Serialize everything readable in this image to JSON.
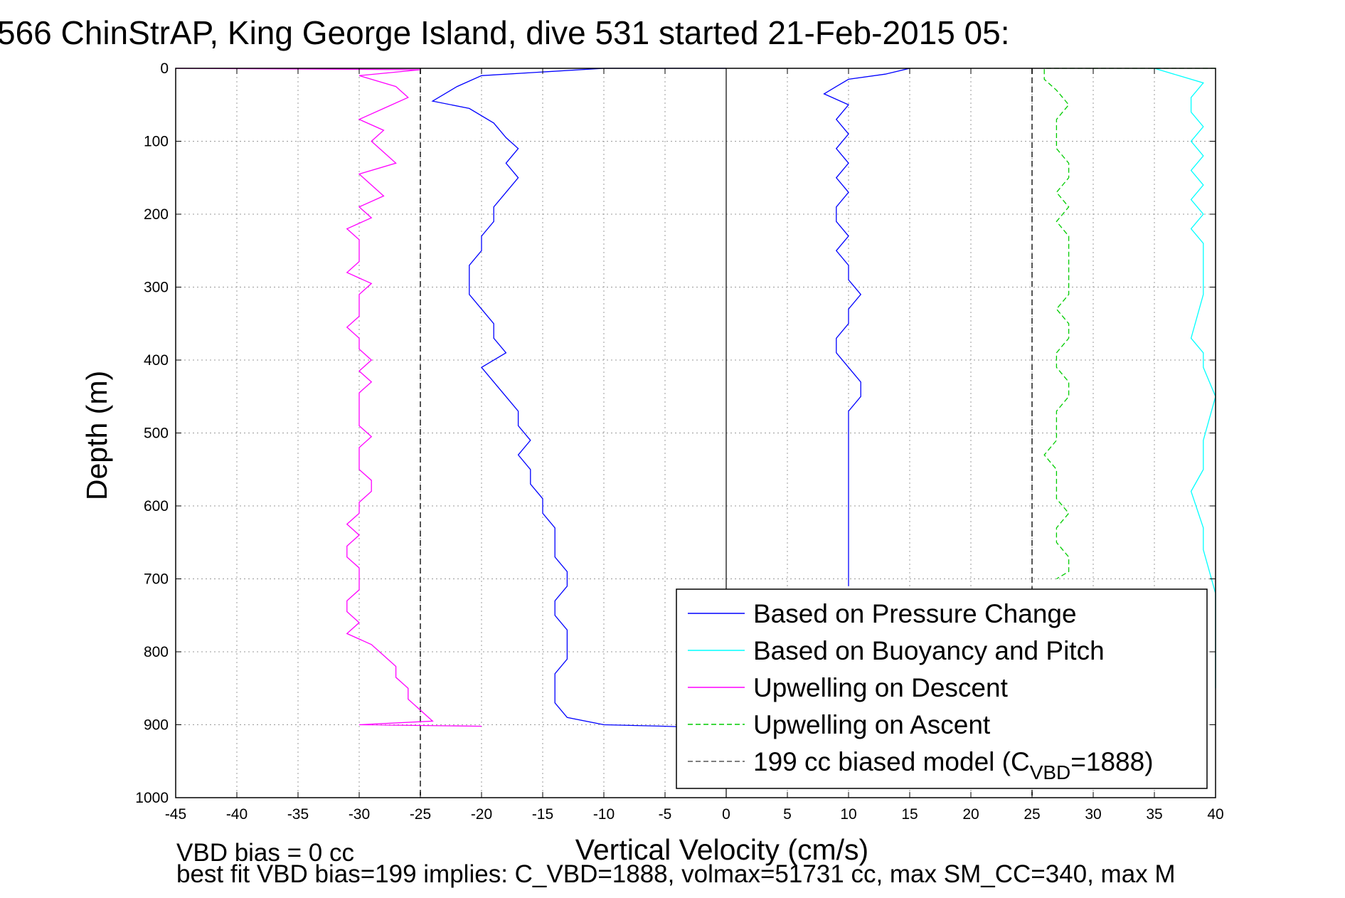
{
  "chart_data": {
    "type": "line",
    "title": "566 ChinStrAP, King George Island, dive 531 started 21-Feb-2015 05:",
    "xlabel": "Vertical Velocity (cm/s)",
    "ylabel": "Depth (m)",
    "xlim": [
      -45,
      40
    ],
    "ylim": [
      0,
      1000
    ],
    "y_reversed": true,
    "grid": true,
    "legend_position": "bottom-right",
    "x_ticks": [
      "-45",
      "-40",
      "-35",
      "-30",
      "-25",
      "-20",
      "-15",
      "-10",
      "-5",
      "0",
      "5",
      "10",
      "15",
      "20",
      "25",
      "30",
      "35",
      "40"
    ],
    "y_ticks": [
      "0",
      "100",
      "200",
      "300",
      "400",
      "500",
      "600",
      "700",
      "800",
      "900",
      "1000"
    ],
    "reference_lines": [
      {
        "name": "zero-line",
        "axis": "x",
        "value": 0,
        "color": "#000000",
        "style": "solid"
      },
      {
        "name": "bias-model-descent",
        "axis": "x",
        "value": -25,
        "color": "#555555",
        "style": "dashed"
      },
      {
        "name": "bias-model-ascent",
        "axis": "x",
        "value": 25,
        "color": "#555555",
        "style": "dashed"
      }
    ],
    "series": [
      {
        "name": "Based on Pressure Change",
        "color": "#0000ff",
        "style": "solid",
        "points": [
          [
            0,
            0
          ],
          [
            -10,
            0
          ],
          [
            -20,
            10
          ],
          [
            -22,
            25
          ],
          [
            -24,
            45
          ],
          [
            -21,
            55
          ],
          [
            -19,
            75
          ],
          [
            -18,
            95
          ],
          [
            -17,
            110
          ],
          [
            -18,
            130
          ],
          [
            -17,
            150
          ],
          [
            -18,
            170
          ],
          [
            -19,
            190
          ],
          [
            -19,
            210
          ],
          [
            -20,
            230
          ],
          [
            -20,
            250
          ],
          [
            -21,
            270
          ],
          [
            -21,
            290
          ],
          [
            -21,
            310
          ],
          [
            -20,
            330
          ],
          [
            -19,
            350
          ],
          [
            -19,
            370
          ],
          [
            -18,
            390
          ],
          [
            -20,
            410
          ],
          [
            -19,
            430
          ],
          [
            -18,
            450
          ],
          [
            -17,
            470
          ],
          [
            -17,
            490
          ],
          [
            -16,
            510
          ],
          [
            -17,
            530
          ],
          [
            -16,
            550
          ],
          [
            -16,
            570
          ],
          [
            -15,
            590
          ],
          [
            -15,
            610
          ],
          [
            -14,
            630
          ],
          [
            -14,
            650
          ],
          [
            -14,
            670
          ],
          [
            -13,
            690
          ],
          [
            -13,
            710
          ],
          [
            -14,
            730
          ],
          [
            -14,
            750
          ],
          [
            -13,
            770
          ],
          [
            -13,
            790
          ],
          [
            -13,
            810
          ],
          [
            -14,
            830
          ],
          [
            -14,
            850
          ],
          [
            -14,
            870
          ],
          [
            -13,
            890
          ],
          [
            -10,
            900
          ],
          [
            -5,
            902
          ],
          [
            0,
            905
          ]
        ]
      },
      {
        "name": "Based on Pressure Change (ascent)",
        "color": "#0000ff",
        "style": "solid",
        "points": [
          [
            15,
            0
          ],
          [
            13,
            8
          ],
          [
            10,
            15
          ],
          [
            9,
            25
          ],
          [
            8,
            35
          ],
          [
            10,
            50
          ],
          [
            9,
            70
          ],
          [
            10,
            90
          ],
          [
            9,
            110
          ],
          [
            10,
            130
          ],
          [
            9,
            150
          ],
          [
            10,
            170
          ],
          [
            9,
            190
          ],
          [
            9,
            210
          ],
          [
            10,
            230
          ],
          [
            9,
            250
          ],
          [
            10,
            270
          ],
          [
            10,
            290
          ],
          [
            11,
            310
          ],
          [
            10,
            330
          ],
          [
            10,
            350
          ],
          [
            9,
            370
          ],
          [
            9,
            390
          ],
          [
            10,
            410
          ],
          [
            11,
            430
          ],
          [
            11,
            450
          ],
          [
            10,
            470
          ],
          [
            10,
            490
          ],
          [
            10,
            510
          ],
          [
            10,
            530
          ],
          [
            10,
            550
          ],
          [
            10,
            570
          ],
          [
            10,
            590
          ],
          [
            10,
            610
          ],
          [
            10,
            630
          ],
          [
            10,
            650
          ],
          [
            10,
            670
          ],
          [
            10,
            690
          ],
          [
            10,
            710
          ]
        ]
      },
      {
        "name": "Based on Buoyancy and Pitch",
        "color": "#00ffff",
        "style": "solid",
        "points": [
          [
            35,
            0
          ],
          [
            37,
            10
          ],
          [
            39,
            20
          ],
          [
            38,
            40
          ],
          [
            38,
            60
          ],
          [
            39,
            80
          ],
          [
            38,
            100
          ],
          [
            39,
            120
          ],
          [
            38,
            140
          ],
          [
            39,
            160
          ],
          [
            38,
            180
          ],
          [
            39,
            200
          ],
          [
            38,
            220
          ],
          [
            39,
            240
          ],
          [
            39,
            300
          ],
          [
            39,
            310
          ],
          [
            38,
            370
          ],
          [
            39,
            390
          ],
          [
            39,
            410
          ],
          [
            40,
            450
          ],
          [
            39,
            510
          ],
          [
            39,
            530
          ],
          [
            39,
            550
          ],
          [
            38,
            580
          ],
          [
            39,
            630
          ],
          [
            39,
            660
          ],
          [
            40,
            720
          ],
          [
            40,
            780
          ],
          [
            40,
            790
          ],
          [
            40,
            850
          ]
        ]
      },
      {
        "name": "Upwelling on Descent",
        "color": "#ff00ff",
        "style": "solid",
        "points": [
          [
            -45,
            0
          ],
          [
            -25,
            2
          ],
          [
            -30,
            10
          ],
          [
            -27,
            25
          ],
          [
            -26,
            40
          ],
          [
            -28,
            55
          ],
          [
            -30,
            70
          ],
          [
            -28,
            85
          ],
          [
            -29,
            100
          ],
          [
            -28,
            115
          ],
          [
            -27,
            130
          ],
          [
            -30,
            145
          ],
          [
            -29,
            160
          ],
          [
            -28,
            175
          ],
          [
            -30,
            190
          ],
          [
            -29,
            205
          ],
          [
            -31,
            220
          ],
          [
            -30,
            235
          ],
          [
            -30,
            250
          ],
          [
            -30,
            265
          ],
          [
            -31,
            280
          ],
          [
            -29,
            295
          ],
          [
            -30,
            310
          ],
          [
            -30,
            325
          ],
          [
            -30,
            340
          ],
          [
            -31,
            355
          ],
          [
            -30,
            370
          ],
          [
            -30,
            385
          ],
          [
            -29,
            400
          ],
          [
            -30,
            415
          ],
          [
            -29,
            430
          ],
          [
            -30,
            445
          ],
          [
            -30,
            460
          ],
          [
            -30,
            475
          ],
          [
            -30,
            490
          ],
          [
            -29,
            505
          ],
          [
            -30,
            520
          ],
          [
            -30,
            535
          ],
          [
            -30,
            550
          ],
          [
            -29,
            565
          ],
          [
            -29,
            580
          ],
          [
            -30,
            595
          ],
          [
            -30,
            610
          ],
          [
            -31,
            625
          ],
          [
            -30,
            640
          ],
          [
            -31,
            655
          ],
          [
            -31,
            670
          ],
          [
            -30,
            685
          ],
          [
            -30,
            700
          ],
          [
            -30,
            715
          ],
          [
            -31,
            730
          ],
          [
            -31,
            745
          ],
          [
            -30,
            760
          ],
          [
            -31,
            775
          ],
          [
            -29,
            790
          ],
          [
            -28,
            805
          ],
          [
            -27,
            820
          ],
          [
            -27,
            835
          ],
          [
            -26,
            850
          ],
          [
            -26,
            865
          ],
          [
            -25,
            880
          ],
          [
            -24,
            895
          ],
          [
            -30,
            900
          ],
          [
            -20,
            902
          ]
        ]
      },
      {
        "name": "Upwelling on Ascent",
        "color": "#00cc00",
        "style": "dashed",
        "points": [
          [
            40,
            0
          ],
          [
            26,
            0
          ],
          [
            26,
            15
          ],
          [
            27,
            30
          ],
          [
            28,
            50
          ],
          [
            27,
            70
          ],
          [
            27,
            90
          ],
          [
            27,
            110
          ],
          [
            28,
            130
          ],
          [
            28,
            150
          ],
          [
            27,
            170
          ],
          [
            28,
            190
          ],
          [
            27,
            210
          ],
          [
            28,
            230
          ],
          [
            28,
            250
          ],
          [
            28,
            270
          ],
          [
            28,
            290
          ],
          [
            28,
            310
          ],
          [
            27,
            330
          ],
          [
            28,
            350
          ],
          [
            28,
            370
          ],
          [
            27,
            390
          ],
          [
            27,
            410
          ],
          [
            28,
            430
          ],
          [
            28,
            450
          ],
          [
            27,
            470
          ],
          [
            27,
            490
          ],
          [
            27,
            510
          ],
          [
            26,
            530
          ],
          [
            27,
            550
          ],
          [
            27,
            570
          ],
          [
            27,
            590
          ],
          [
            28,
            610
          ],
          [
            27,
            630
          ],
          [
            27,
            650
          ],
          [
            28,
            670
          ],
          [
            28,
            690
          ],
          [
            27,
            700
          ]
        ]
      }
    ],
    "legend": [
      {
        "label": "Based on Pressure Change",
        "color": "#0000ff",
        "style": "solid"
      },
      {
        "label": "Based on Buoyancy and Pitch",
        "color": "#00ffff",
        "style": "solid"
      },
      {
        "label": "Upwelling on Descent",
        "color": "#ff00ff",
        "style": "solid"
      },
      {
        "label": "Upwelling on Ascent",
        "color": "#00cc00",
        "style": "dashed"
      },
      {
        "label": "199 cc biased model (C",
        "sub": "VBD",
        "suffix": "=1888)",
        "color": "#555555",
        "style": "dashed"
      }
    ],
    "annotations": {
      "vbd_bias": "VBD bias = 0 cc",
      "best_fit": "best fit VBD bias=199 implies: C_VBD=1888, volmax=51731 cc, max SM_CC=340, max M"
    }
  }
}
